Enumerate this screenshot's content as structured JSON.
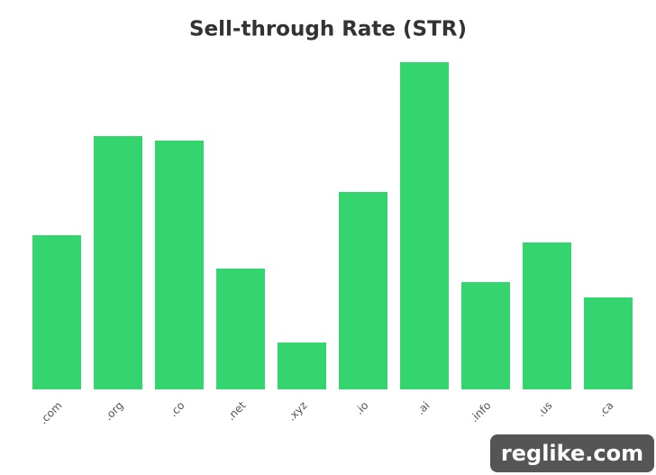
{
  "chart_data": {
    "type": "bar",
    "title": "Sell-through Rate (STR)",
    "categories": [
      ".com",
      ".org",
      ".co",
      ".net",
      ".xyz",
      ".io",
      ".ai",
      ".info",
      ".us",
      ".ca"
    ],
    "values": [
      17.1,
      28.1,
      27.6,
      13.4,
      5.2,
      21.9,
      36.3,
      11.9,
      16.3,
      10.2
    ],
    "color": "#34d46f",
    "watermark": "reglike.com"
  }
}
